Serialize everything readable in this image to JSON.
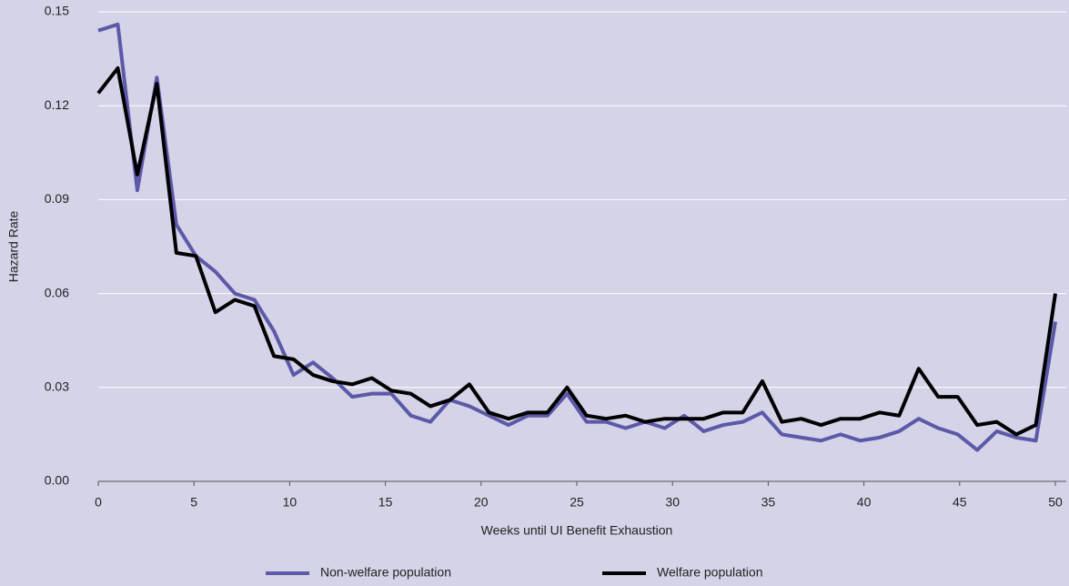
{
  "chart_data": {
    "type": "line",
    "x_label": "Weeks until UI Benefit Exhaustion",
    "y_label": "Hazard Rate",
    "x": [
      0,
      1.02,
      2.04,
      3.06,
      4.08,
      5.1,
      6.12,
      7.14,
      8.16,
      9.18,
      10.2,
      11.22,
      12.24,
      13.27,
      14.29,
      15.31,
      16.33,
      17.35,
      18.37,
      19.39,
      20.41,
      21.43,
      22.45,
      23.47,
      24.49,
      25.51,
      26.53,
      27.55,
      28.57,
      29.59,
      30.61,
      31.63,
      32.65,
      33.67,
      34.69,
      35.71,
      36.73,
      37.76,
      38.78,
      39.8,
      40.82,
      41.84,
      42.86,
      43.88,
      44.9,
      45.92,
      46.94,
      47.96,
      48.98,
      50
    ],
    "series": [
      {
        "name": "Non-welfare population",
        "color": "#5b59a8",
        "values": [
          0.144,
          0.146,
          0.093,
          0.129,
          0.082,
          0.072,
          0.067,
          0.06,
          0.058,
          0.048,
          0.034,
          0.038,
          0.033,
          0.027,
          0.028,
          0.028,
          0.021,
          0.019,
          0.026,
          0.024,
          0.021,
          0.018,
          0.021,
          0.021,
          0.028,
          0.019,
          0.019,
          0.017,
          0.019,
          0.017,
          0.021,
          0.016,
          0.018,
          0.019,
          0.022,
          0.015,
          0.014,
          0.013,
          0.015,
          0.013,
          0.014,
          0.016,
          0.02,
          0.017,
          0.015,
          0.01,
          0.016,
          0.014,
          0.013,
          0.051
        ]
      },
      {
        "name": "Welfare population",
        "color": "#000000",
        "values": [
          0.124,
          0.132,
          0.098,
          0.127,
          0.073,
          0.072,
          0.054,
          0.058,
          0.056,
          0.04,
          0.039,
          0.034,
          0.032,
          0.031,
          0.033,
          0.029,
          0.028,
          0.024,
          0.026,
          0.031,
          0.022,
          0.02,
          0.022,
          0.022,
          0.03,
          0.021,
          0.02,
          0.021,
          0.019,
          0.02,
          0.02,
          0.02,
          0.022,
          0.022,
          0.032,
          0.019,
          0.02,
          0.018,
          0.02,
          0.02,
          0.022,
          0.021,
          0.036,
          0.027,
          0.027,
          0.018,
          0.019,
          0.015,
          0.018,
          0.06
        ]
      }
    ],
    "xlim": [
      0,
      50
    ],
    "xticks": [
      0,
      5,
      10,
      15,
      20,
      25,
      30,
      35,
      40,
      45,
      50
    ],
    "ylim": [
      0,
      0.15
    ],
    "yticks": [
      {
        "value": 0,
        "label": "0.00"
      },
      0.03,
      0.06,
      0.09,
      0.12,
      0.15
    ],
    "grid": true,
    "legend": "bottom"
  }
}
